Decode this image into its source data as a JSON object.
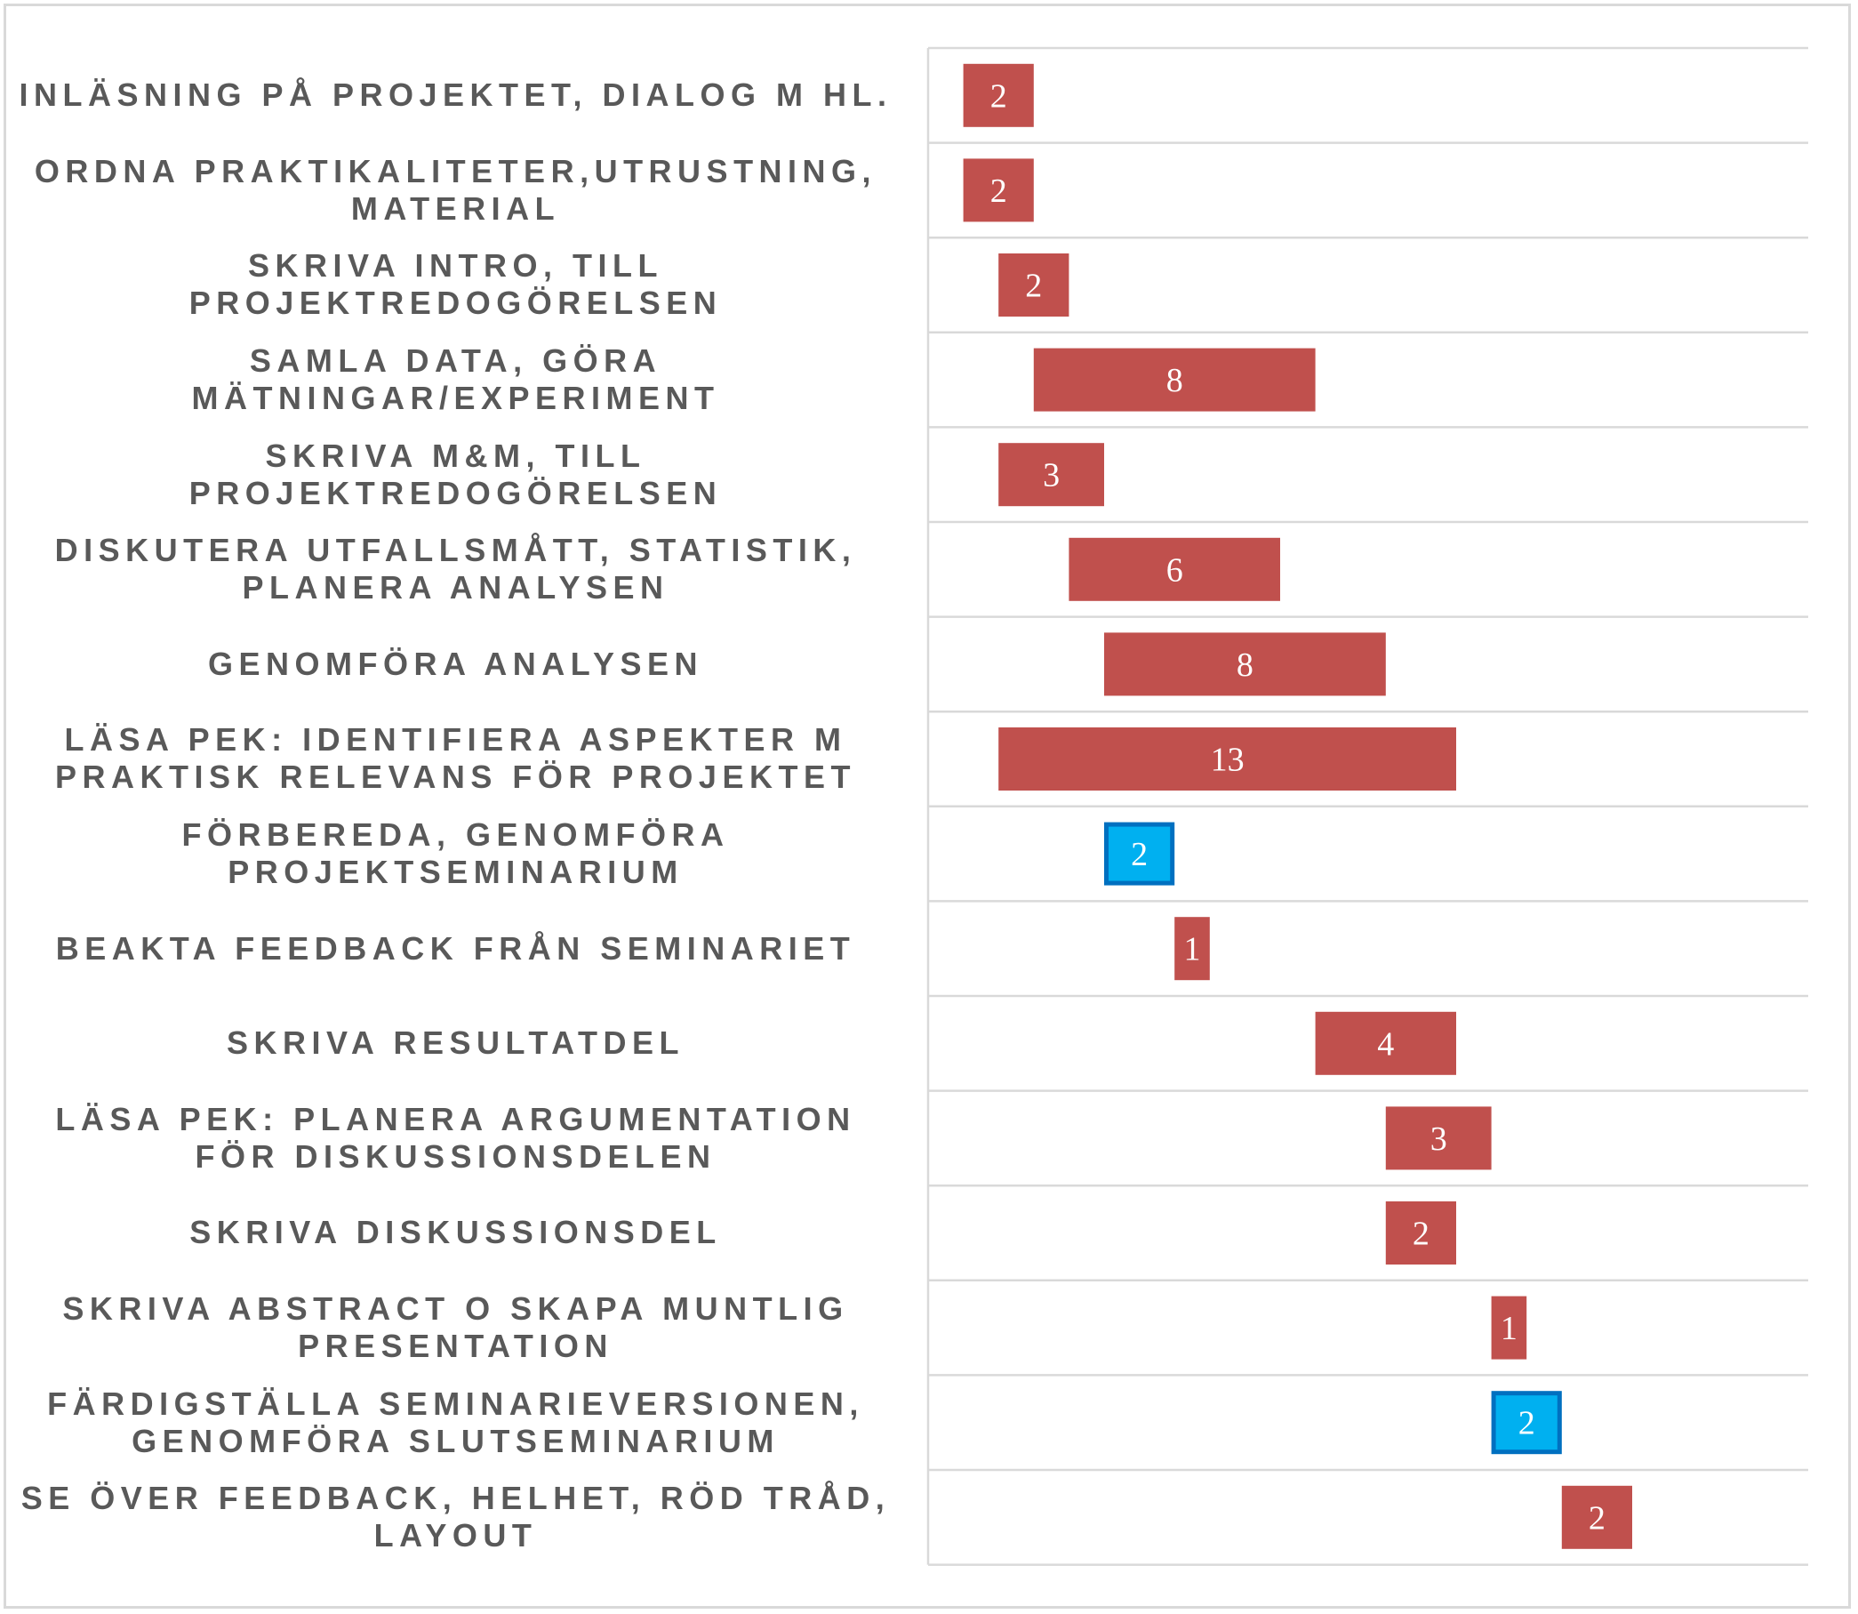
{
  "chart_data": {
    "type": "bar",
    "subtype": "gantt-stacked-horizontal",
    "categories": [
      "Inläsning på projektet, dialog m HL.",
      "Ordna praktikaliteter,utrustning, material",
      "Skriva intro, till projektredogörelsen",
      "Samla data, göra mätningar/experiment",
      "Skriva M&M, till projektredogörelsen",
      "Diskutera utfallsmått, statistik, planera analysen",
      "Genomföra analysen",
      "Läsa PEK: identifiera aspekter m praktisk relevans för projektet",
      "Förbereda, genomföra projektseminarium",
      "Beakta feedback från seminariet",
      "Skriva resultatdel",
      "Läsa PEK: planera argumentation för diskussionsdelen",
      "Skriva diskussionsdel",
      "Skriva abstract o skapa muntlig presentation",
      "Färdigställa seminarieversionen, genomföra slutseminarium",
      "Se över feedback, helhet, röd tråd, layout"
    ],
    "start": [
      1,
      1,
      2,
      3,
      2,
      4,
      5,
      2,
      5,
      7,
      11,
      13,
      13,
      16,
      16,
      18
    ],
    "values": [
      2,
      2,
      2,
      8,
      3,
      6,
      8,
      13,
      2,
      1,
      4,
      3,
      2,
      1,
      2,
      2
    ],
    "highlight": [
      false,
      false,
      false,
      false,
      false,
      false,
      false,
      false,
      true,
      false,
      false,
      false,
      false,
      false,
      true,
      false
    ],
    "xlim": [
      0,
      25
    ],
    "grid": true,
    "legend": "none",
    "colors": {
      "bar": "#c0504d",
      "milestone_fill": "#00b0f0",
      "milestone_border": "#0070c0",
      "bar_label": "#ffffff",
      "category_label": "#595959",
      "gridline": "#d9d9d9"
    }
  }
}
